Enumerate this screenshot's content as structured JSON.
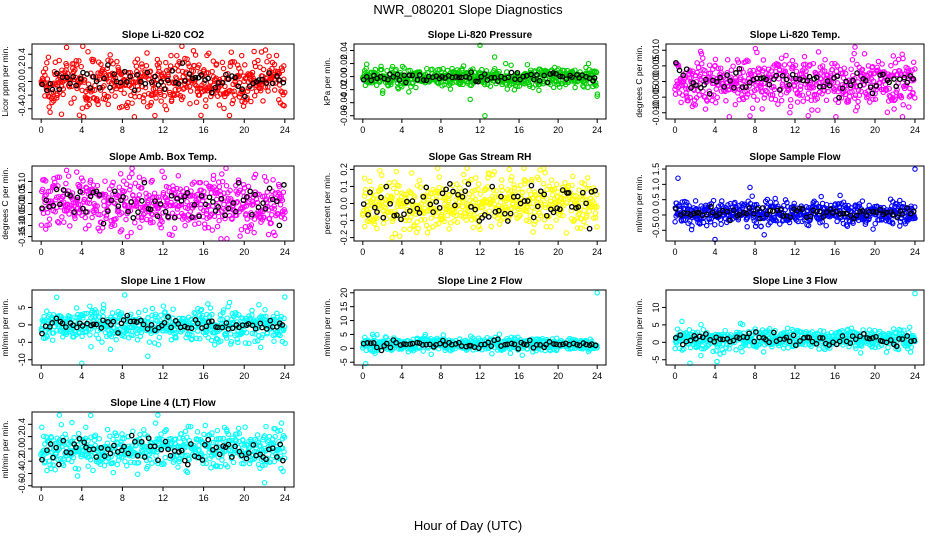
{
  "figure": {
    "title": "NWR_080201  Slope Diagnostics",
    "xlabel": "Hour of Day (UTC)"
  },
  "chart_data": [
    {
      "type": "scatter",
      "title": "Slope Li-820 CO2",
      "ylabel": "Licor ppm per min.",
      "color": "#ff0000",
      "xlim": [
        0,
        24
      ],
      "ylim": [
        -0.55,
        0.55
      ],
      "yticks": [
        -0.4,
        -0.2,
        0.0,
        0.2,
        0.4
      ],
      "ytick_labels": [
        "-0.4",
        "-0.2",
        "0.0",
        "0.2",
        "0.4"
      ],
      "xticks": [
        0,
        4,
        8,
        12,
        16,
        20,
        24
      ],
      "spread": 0.18,
      "black_spread": 0.1,
      "outliers": [
        [
          2.5,
          0.5
        ],
        [
          11.2,
          -0.5
        ],
        [
          2.0,
          -0.48
        ],
        [
          15.0,
          0.45
        ]
      ]
    },
    {
      "type": "scatter",
      "title": "Slope Li-820 Pressure",
      "ylabel": "kPa per min.",
      "color": "#00cc00",
      "xlim": [
        0,
        24
      ],
      "ylim": [
        -0.065,
        0.05
      ],
      "yticks": [
        -0.06,
        -0.04,
        -0.02,
        0.0,
        0.02,
        0.04
      ],
      "ytick_labels": [
        "-0.06",
        "-0.04",
        "-0.02",
        "0.00",
        "0.02",
        "0.04"
      ],
      "xticks": [
        0,
        4,
        8,
        12,
        16,
        20,
        24
      ],
      "spread": 0.008,
      "black_spread": 0.004,
      "outliers": [
        [
          12.0,
          0.048
        ],
        [
          12.5,
          -0.06
        ],
        [
          11.0,
          -0.035
        ],
        [
          13.5,
          0.03
        ],
        [
          24.0,
          -0.03
        ]
      ]
    },
    {
      "type": "scatter",
      "title": "Slope Li-820 Temp.",
      "ylabel": "degrees C per min.",
      "color": "#ff00ff",
      "xlim": [
        0,
        24
      ],
      "ylim": [
        -0.012,
        0.012
      ],
      "yticks": [
        -0.01,
        -0.005,
        0.0,
        0.005,
        0.01
      ],
      "ytick_labels": [
        "-0.010",
        "-0.005",
        "0.000",
        "0.005",
        "0.010"
      ],
      "xticks": [
        0,
        4,
        8,
        12,
        16,
        20,
        24
      ],
      "spread": 0.004,
      "black_spread": 0.002,
      "outliers": [
        [
          18.0,
          0.011
        ],
        [
          7.5,
          -0.011
        ]
      ]
    },
    {
      "type": "scatter",
      "title": "Slope Amb. Box Temp.",
      "ylabel": "degrees C per min.",
      "color": "#ff00ff",
      "xlim": [
        0,
        24
      ],
      "ylim": [
        -0.17,
        0.17
      ],
      "yticks": [
        -0.15,
        -0.1,
        -0.05,
        0.0,
        0.05,
        0.1
      ],
      "ytick_labels": [
        "-0.15",
        "-0.10",
        "-0.05",
        "0.00",
        "0.05",
        "0.10"
      ],
      "xticks": [
        0,
        4,
        8,
        12,
        16,
        20,
        24
      ],
      "spread": 0.06,
      "black_spread": 0.04,
      "outliers": [
        [
          8.5,
          -0.15
        ],
        [
          2.5,
          0.15
        ]
      ]
    },
    {
      "type": "scatter",
      "title": "Slope Gas Stream RH",
      "ylabel": "percent per min.",
      "color": "#ffff00",
      "xlim": [
        0,
        24
      ],
      "ylim": [
        -0.22,
        0.22
      ],
      "yticks": [
        -0.2,
        -0.1,
        0.0,
        0.1,
        0.2
      ],
      "ytick_labels": [
        "-0.2",
        "-0.1",
        "0.0",
        "0.1",
        "0.2"
      ],
      "xticks": [
        0,
        4,
        8,
        12,
        16,
        20,
        24
      ],
      "spread": 0.08,
      "black_spread": 0.06,
      "outliers": [
        [
          3.0,
          -0.2
        ],
        [
          15.0,
          0.2
        ]
      ]
    },
    {
      "type": "scatter",
      "title": "Slope Sample Flow",
      "ylabel": "ml/min per min.",
      "color": "#0000ff",
      "xlim": [
        0,
        24
      ],
      "ylim": [
        -0.85,
        1.6
      ],
      "yticks": [
        -0.5,
        0.0,
        0.5,
        1.0,
        1.5
      ],
      "ytick_labels": [
        "-0.5",
        "0.0",
        "0.5",
        "1.0",
        "1.5"
      ],
      "xticks": [
        0,
        4,
        8,
        12,
        16,
        20,
        24
      ],
      "spread": 0.2,
      "black_spread": 0.1,
      "outliers": [
        [
          0.3,
          1.2
        ],
        [
          24.0,
          1.5
        ],
        [
          4.0,
          -0.8
        ],
        [
          7.5,
          0.9
        ]
      ]
    },
    {
      "type": "scatter",
      "title": "Slope Line 1 Flow",
      "ylabel": "ml/min per min.",
      "color": "#00ffff",
      "xlim": [
        0,
        24
      ],
      "ylim": [
        -11.5,
        10
      ],
      "yticks": [
        -10,
        -5,
        0,
        5
      ],
      "ytick_labels": [
        "-10",
        "-5",
        "0",
        "5"
      ],
      "xticks": [
        0,
        4,
        8,
        12,
        16,
        20,
        24
      ],
      "spread": 2.2,
      "black_spread": 1.0,
      "outliers": [
        [
          24.0,
          8.0
        ],
        [
          4.0,
          -11.0
        ],
        [
          13.0,
          4.5
        ],
        [
          10.5,
          -9.0
        ]
      ]
    },
    {
      "type": "scatter",
      "title": "Slope Line 2 Flow",
      "ylabel": "ml/min per min.",
      "color": "#00ffff",
      "xlim": [
        0,
        24
      ],
      "ylim": [
        -6,
        21
      ],
      "yticks": [
        -5,
        0,
        5,
        10,
        15,
        20
      ],
      "ytick_labels": [
        "-5",
        "0",
        "5",
        "10",
        "15",
        "20"
      ],
      "xticks": [
        0,
        4,
        8,
        12,
        16,
        20,
        24
      ],
      "spread": 1.2,
      "black_spread": 0.7,
      "outliers": [
        [
          24.0,
          20.0
        ],
        [
          0.3,
          -5.5
        ],
        [
          1.0,
          5.0
        ]
      ]
    },
    {
      "type": "scatter",
      "title": "Slope Line 3 Flow",
      "ylabel": "ml/min per min.",
      "color": "#00ffff",
      "xlim": [
        0,
        24
      ],
      "ylim": [
        -6.5,
        15
      ],
      "yticks": [
        -5,
        0,
        5,
        10
      ],
      "ytick_labels": [
        "-5",
        "0",
        "5",
        "10"
      ],
      "xticks": [
        0,
        4,
        8,
        12,
        16,
        20,
        24
      ],
      "spread": 1.5,
      "black_spread": 0.9,
      "outliers": [
        [
          24.0,
          14.0
        ],
        [
          1.5,
          -6.0
        ],
        [
          4.2,
          -5.5
        ],
        [
          0.7,
          6.0
        ]
      ]
    },
    {
      "type": "scatter",
      "title": "Slope Line 4 (LT) Flow",
      "ylabel": "ml/min per min.",
      "color": "#00ffff",
      "xlim": [
        0,
        24
      ],
      "ylim": [
        -0.62,
        0.6
      ],
      "yticks": [
        -0.6,
        -0.4,
        -0.2,
        0.0,
        0.2,
        0.4
      ],
      "ytick_labels": [
        "-0.6",
        "-0.4",
        "-0.2",
        "0.0",
        "0.2",
        "0.4"
      ],
      "xticks": [
        0,
        4,
        8,
        12,
        16,
        20,
        24
      ],
      "spread": 0.16,
      "black_spread": 0.12,
      "outliers": [
        [
          1.8,
          0.55
        ],
        [
          22.0,
          -0.55
        ],
        [
          11.5,
          0.55
        ]
      ]
    }
  ]
}
